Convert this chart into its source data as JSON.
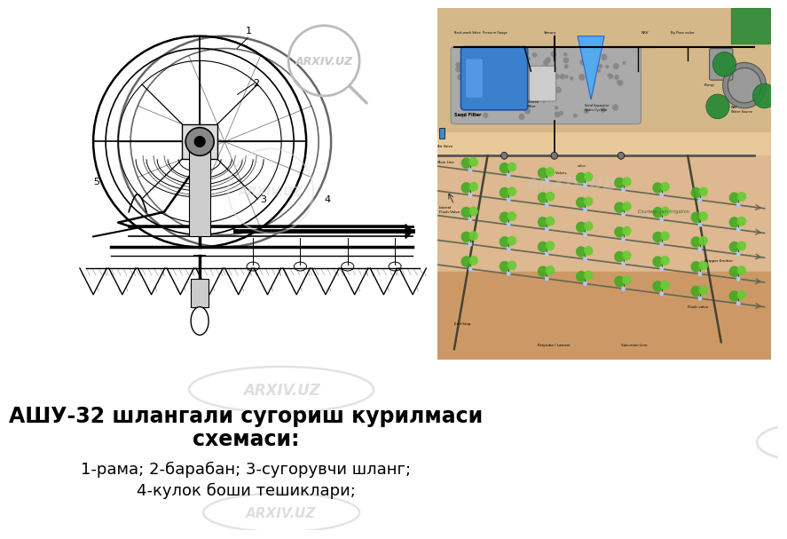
{
  "background_color": "#ffffff",
  "title_line1": "АШУ-32 шлангали сугориш курилмаси",
  "title_line2": "схемаси:",
  "description_line1": "1-рама; 2-барабан; 3-сугорувчи шланг;",
  "description_line2": "4-кулок боши тешиклари;",
  "title_fontsize": 17,
  "desc_fontsize": 13,
  "watermark_text": "ARXIV.UZ",
  "watermark_color": "#c8c8c8",
  "fig_width": 8.0,
  "fig_height": 6.0,
  "right_bg": "#e8c99a",
  "right_top_bg": "#d4b88a"
}
